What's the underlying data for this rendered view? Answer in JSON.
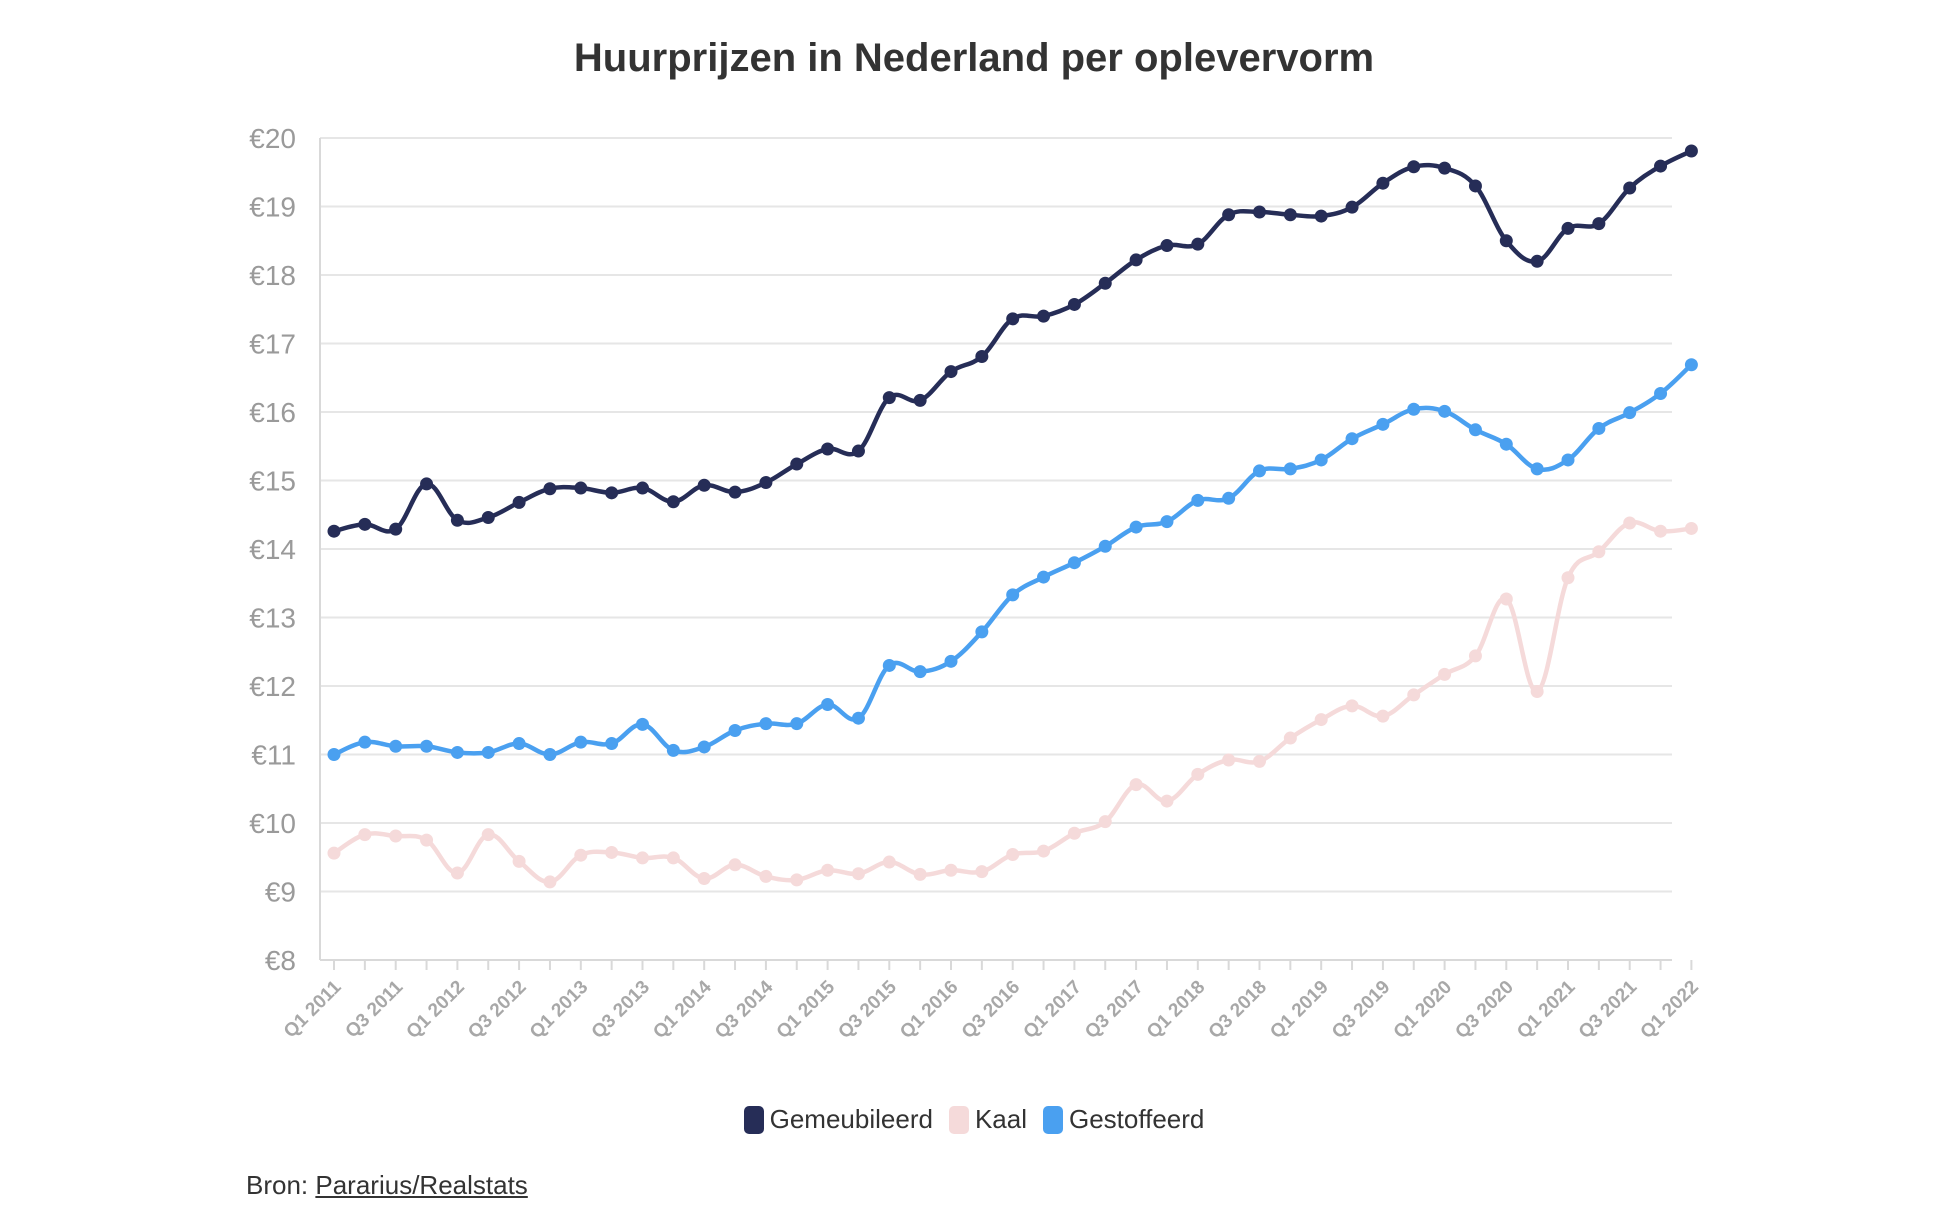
{
  "chart_data": {
    "type": "line",
    "title": "Huurprijzen in Nederland per oplevervorm",
    "xlabel": "",
    "ylabel": "",
    "ylim": [
      8,
      20
    ],
    "yticks": [
      "€8",
      "€9",
      "€10",
      "€11",
      "€12",
      "€13",
      "€14",
      "€15",
      "€16",
      "€17",
      "€18",
      "€19",
      "€20"
    ],
    "grid": true,
    "legend_position": "bottom",
    "x": [
      "Q1 2011",
      "Q2 2011",
      "Q3 2011",
      "Q4 2011",
      "Q1 2012",
      "Q2 2012",
      "Q3 2012",
      "Q4 2012",
      "Q1 2013",
      "Q2 2013",
      "Q3 2013",
      "Q4 2013",
      "Q1 2014",
      "Q2 2014",
      "Q3 2014",
      "Q4 2014",
      "Q1 2015",
      "Q2 2015",
      "Q3 2015",
      "Q4 2015",
      "Q1 2016",
      "Q2 2016",
      "Q3 2016",
      "Q4 2016",
      "Q1 2017",
      "Q2 2017",
      "Q3 2017",
      "Q4 2017",
      "Q1 2018",
      "Q2 2018",
      "Q3 2018",
      "Q4 2018",
      "Q1 2019",
      "Q2 2019",
      "Q3 2019",
      "Q4 2019",
      "Q1 2020",
      "Q2 2020",
      "Q3 2020",
      "Q4 2020",
      "Q1 2021",
      "Q2 2021",
      "Q3 2021",
      "Q4 2021",
      "Q1 2022"
    ],
    "xtick_labels": [
      "Q1 2011",
      "Q3 2011",
      "Q1 2012",
      "Q3 2012",
      "Q1 2013",
      "Q3 2013",
      "Q1 2014",
      "Q3 2014",
      "Q1 2015",
      "Q3 2015",
      "Q1 2016",
      "Q3 2016",
      "Q1 2017",
      "Q3 2017",
      "Q1 2018",
      "Q3 2018",
      "Q1 2019",
      "Q3 2019",
      "Q1 2020",
      "Q3 2020",
      "Q1 2021",
      "Q3 2021",
      "Q1 2022"
    ],
    "series": [
      {
        "name": "Gemeubileerd",
        "color": "#262d57",
        "values": [
          14.26,
          14.36,
          14.29,
          14.95,
          14.42,
          14.46,
          14.68,
          14.88,
          14.89,
          14.82,
          14.89,
          14.69,
          14.93,
          14.83,
          14.97,
          15.24,
          15.46,
          15.43,
          16.21,
          16.17,
          16.59,
          16.81,
          17.36,
          17.4,
          17.57,
          17.88,
          18.22,
          18.43,
          18.45,
          18.88,
          18.92,
          18.88,
          18.86,
          18.99,
          19.34,
          19.58,
          19.56,
          19.3,
          18.5,
          18.2,
          18.68,
          18.75,
          19.27,
          19.59,
          19.81
        ]
      },
      {
        "name": "Kaal",
        "color": "#f5dada",
        "values": [
          9.56,
          9.83,
          9.81,
          9.75,
          9.27,
          9.83,
          9.44,
          9.14,
          9.53,
          9.57,
          9.49,
          9.49,
          9.19,
          9.39,
          9.22,
          9.17,
          9.31,
          9.26,
          9.43,
          9.25,
          9.31,
          9.29,
          9.54,
          9.59,
          9.85,
          10.02,
          10.56,
          10.32,
          10.71,
          10.92,
          10.9,
          11.24,
          11.51,
          11.71,
          11.56,
          11.87,
          12.17,
          12.44,
          13.27,
          11.92,
          13.58,
          13.96,
          14.38,
          14.26,
          14.3
        ]
      },
      {
        "name": "Gestoffeerd",
        "color": "#4aa0f0",
        "values": [
          11.0,
          11.18,
          11.12,
          11.12,
          11.03,
          11.03,
          11.16,
          11.0,
          11.18,
          11.16,
          11.44,
          11.06,
          11.11,
          11.35,
          11.45,
          11.45,
          11.73,
          11.53,
          12.3,
          12.21,
          12.36,
          12.79,
          13.33,
          13.59,
          13.8,
          14.04,
          14.32,
          14.4,
          14.71,
          14.74,
          15.14,
          15.17,
          15.3,
          15.61,
          15.82,
          16.04,
          16.01,
          15.74,
          15.53,
          15.17,
          15.3,
          15.76,
          15.99,
          16.27,
          16.69
        ]
      }
    ]
  },
  "legend": {
    "items": [
      {
        "label": "Gemeubileerd",
        "color": "#262d57"
      },
      {
        "label": "Kaal",
        "color": "#f5dada"
      },
      {
        "label": "Gestoffeerd",
        "color": "#4aa0f0"
      }
    ]
  },
  "source": {
    "prefix": "Bron: ",
    "link_text": "Pararius/Realstats"
  }
}
